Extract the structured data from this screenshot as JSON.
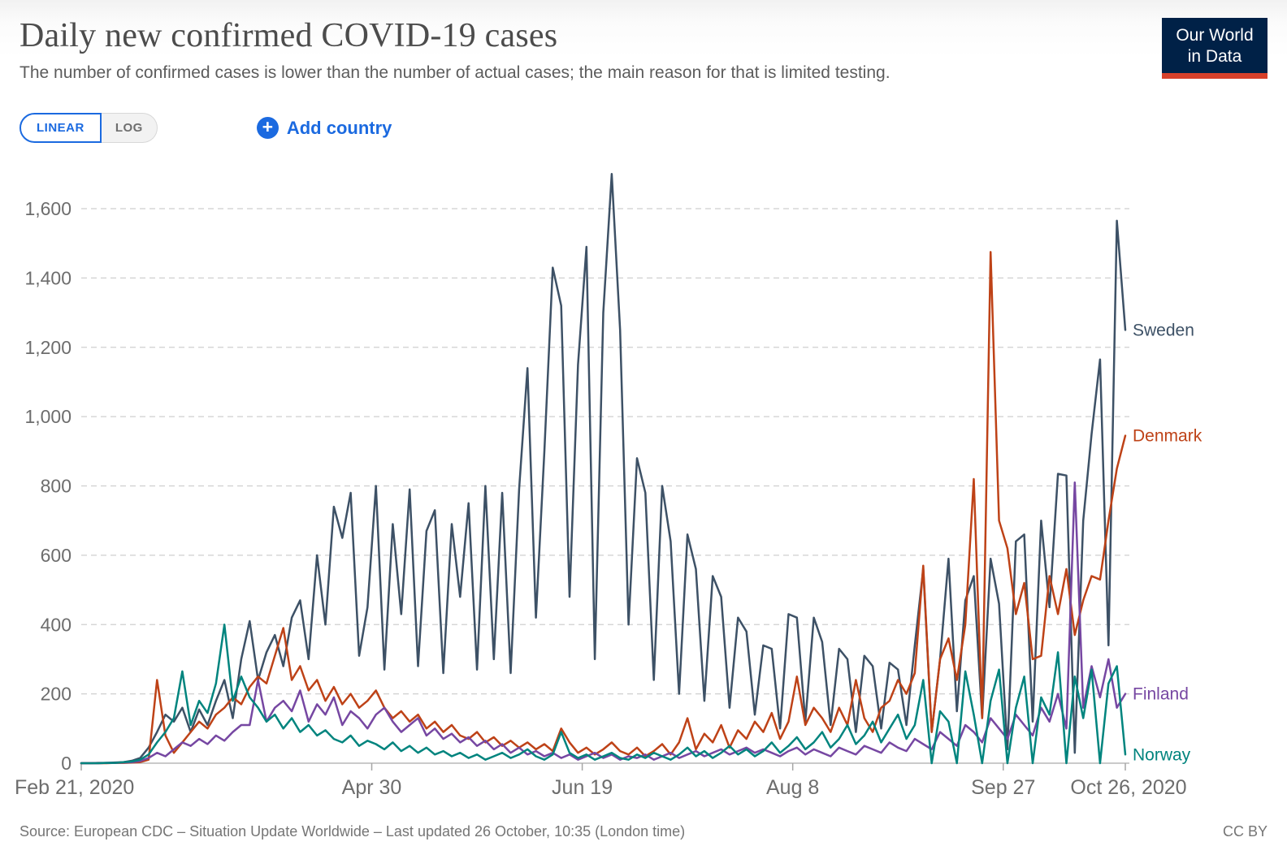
{
  "header": {
    "title": "Daily new confirmed COVID-19 cases",
    "subtitle": "The number of confirmed cases is lower than the number of actual cases; the main reason for that is limited testing.",
    "logo": {
      "line1": "Our World",
      "line2": "in Data",
      "bg": "#002147",
      "accent": "#d7402a"
    }
  },
  "controls": {
    "scale_toggle": {
      "options": [
        "LINEAR",
        "LOG"
      ],
      "active": "LINEAR"
    },
    "add_country_label": "Add country",
    "plus_glyph": "+",
    "accent_blue": "#1b6ae0"
  },
  "chart_data": {
    "type": "line",
    "title": "Daily new confirmed COVID-19 cases",
    "x_axis": {
      "range_days": [
        0,
        248
      ],
      "ticks": [
        {
          "label": "Feb 21, 2020",
          "day": 0
        },
        {
          "label": "Apr 30",
          "day": 69
        },
        {
          "label": "Jun 19",
          "day": 119
        },
        {
          "label": "Aug 8",
          "day": 169
        },
        {
          "label": "Sep 27",
          "day": 219
        },
        {
          "label": "Oct 26, 2020",
          "day": 248
        }
      ]
    },
    "y_axis": {
      "range": [
        0,
        1600
      ],
      "ticks": [
        0,
        200,
        400,
        600,
        800,
        1000,
        1200,
        1400,
        1600
      ],
      "labels": [
        "0",
        "200",
        "400",
        "600",
        "800",
        "1,000",
        "1,200",
        "1,400",
        "1,600"
      ],
      "gridlines": true,
      "grid_style": "dashed"
    },
    "sample_step_days": 2,
    "series": [
      {
        "name": "Sweden",
        "color": "#3d5166",
        "values": [
          0,
          0,
          1,
          1,
          2,
          3,
          7,
          15,
          45,
          90,
          140,
          120,
          160,
          90,
          155,
          110,
          180,
          240,
          130,
          300,
          410,
          240,
          320,
          370,
          280,
          420,
          470,
          300,
          600,
          400,
          740,
          650,
          780,
          310,
          450,
          800,
          270,
          690,
          430,
          790,
          280,
          670,
          730,
          260,
          690,
          480,
          750,
          270,
          800,
          300,
          780,
          260,
          790,
          1140,
          420,
          900,
          1430,
          1320,
          480,
          1150,
          1490,
          300,
          1300,
          1700,
          1250,
          400,
          880,
          780,
          240,
          800,
          640,
          200,
          660,
          560,
          180,
          540,
          480,
          160,
          420,
          380,
          140,
          340,
          330,
          100,
          430,
          420,
          120,
          420,
          350,
          110,
          330,
          300,
          90,
          310,
          280,
          100,
          290,
          270,
          110,
          340,
          560,
          90,
          300,
          590,
          150,
          470,
          540,
          130,
          590,
          460,
          40,
          640,
          660,
          120,
          700,
          450,
          835,
          830,
          30,
          700,
          950,
          1165,
          340,
          1565,
          1250
        ]
      },
      {
        "name": "Denmark",
        "color": "#be4217",
        "values": [
          0,
          0,
          0,
          0,
          1,
          1,
          2,
          3,
          10,
          240,
          80,
          30,
          60,
          90,
          120,
          100,
          140,
          160,
          190,
          170,
          220,
          250,
          230,
          310,
          390,
          240,
          280,
          210,
          240,
          180,
          220,
          170,
          200,
          160,
          180,
          210,
          160,
          130,
          150,
          120,
          140,
          100,
          120,
          90,
          110,
          80,
          70,
          90,
          60,
          75,
          50,
          65,
          45,
          60,
          40,
          55,
          35,
          100,
          60,
          30,
          45,
          25,
          40,
          60,
          35,
          25,
          45,
          20,
          35,
          55,
          25,
          60,
          130,
          40,
          85,
          60,
          110,
          45,
          95,
          70,
          120,
          90,
          145,
          70,
          120,
          250,
          110,
          160,
          130,
          90,
          160,
          110,
          240,
          130,
          90,
          160,
          180,
          240,
          200,
          260,
          570,
          90,
          300,
          360,
          240,
          400,
          820,
          130,
          1475,
          700,
          620,
          430,
          520,
          300,
          310,
          540,
          430,
          560,
          370,
          470,
          540,
          530,
          700,
          850,
          945
        ]
      },
      {
        "name": "Finland",
        "color": "#7647a2",
        "values": [
          0,
          0,
          0,
          1,
          1,
          2,
          3,
          6,
          15,
          30,
          20,
          40,
          60,
          50,
          70,
          55,
          80,
          65,
          90,
          110,
          110,
          240,
          120,
          160,
          180,
          150,
          210,
          120,
          170,
          140,
          190,
          110,
          150,
          130,
          100,
          140,
          160,
          120,
          90,
          110,
          130,
          80,
          100,
          70,
          85,
          60,
          75,
          50,
          65,
          40,
          55,
          30,
          45,
          25,
          35,
          20,
          30,
          15,
          25,
          10,
          20,
          30,
          15,
          25,
          10,
          20,
          15,
          25,
          10,
          20,
          30,
          15,
          25,
          35,
          20,
          30,
          40,
          25,
          35,
          45,
          30,
          40,
          30,
          20,
          35,
          45,
          25,
          40,
          30,
          20,
          45,
          35,
          25,
          50,
          40,
          30,
          60,
          45,
          35,
          70,
          55,
          40,
          90,
          70,
          50,
          110,
          90,
          60,
          130,
          100,
          70,
          140,
          110,
          80,
          160,
          120,
          200,
          100,
          810,
          160,
          280,
          190,
          300,
          160,
          200
        ]
      },
      {
        "name": "Norway",
        "color": "#00847e",
        "values": [
          0,
          0,
          0,
          1,
          1,
          3,
          5,
          10,
          25,
          60,
          90,
          130,
          265,
          110,
          180,
          145,
          230,
          400,
          180,
          250,
          190,
          160,
          120,
          140,
          100,
          130,
          90,
          110,
          80,
          95,
          70,
          60,
          80,
          50,
          65,
          55,
          40,
          60,
          35,
          50,
          30,
          45,
          25,
          35,
          20,
          30,
          15,
          25,
          10,
          20,
          30,
          15,
          25,
          40,
          20,
          10,
          25,
          90,
          30,
          15,
          25,
          10,
          20,
          30,
          15,
          10,
          25,
          15,
          30,
          20,
          10,
          25,
          45,
          20,
          35,
          15,
          30,
          50,
          25,
          40,
          20,
          35,
          60,
          30,
          50,
          75,
          40,
          60,
          90,
          45,
          70,
          110,
          55,
          80,
          120,
          60,
          100,
          140,
          70,
          110,
          240,
          0,
          150,
          120,
          0,
          265,
          140,
          0,
          180,
          270,
          0,
          160,
          250,
          0,
          190,
          140,
          320,
          0,
          250,
          130,
          270,
          0,
          230,
          280,
          25
        ]
      }
    ]
  },
  "footer": {
    "source": "Source: European CDC – Situation Update Worldwide – Last updated 26 October, 10:35 (London time)",
    "license": "CC BY"
  }
}
